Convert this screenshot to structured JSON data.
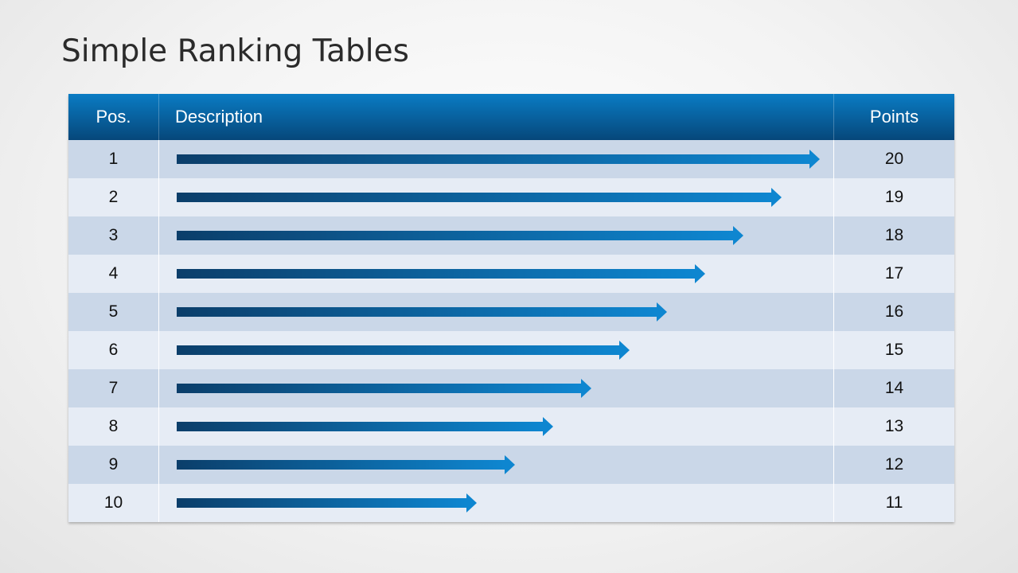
{
  "title": "Simple Ranking Tables",
  "table": {
    "headers": {
      "pos": "Pos.",
      "description": "Description",
      "points": "Points"
    },
    "rows": [
      {
        "pos": "1",
        "points": "20"
      },
      {
        "pos": "2",
        "points": "19"
      },
      {
        "pos": "3",
        "points": "18"
      },
      {
        "pos": "4",
        "points": "17"
      },
      {
        "pos": "5",
        "points": "16"
      },
      {
        "pos": "6",
        "points": "15"
      },
      {
        "pos": "7",
        "points": "14"
      },
      {
        "pos": "8",
        "points": "13"
      },
      {
        "pos": "9",
        "points": "12"
      },
      {
        "pos": "10",
        "points": "11"
      }
    ],
    "colors": {
      "header_top": "#0a7cc4",
      "header_bottom": "#06477a",
      "arrow_start": "#0b3e6a",
      "arrow_end": "#0e86d0",
      "row_odd": "#cad7e8",
      "row_even": "#e6ecf5"
    }
  }
}
